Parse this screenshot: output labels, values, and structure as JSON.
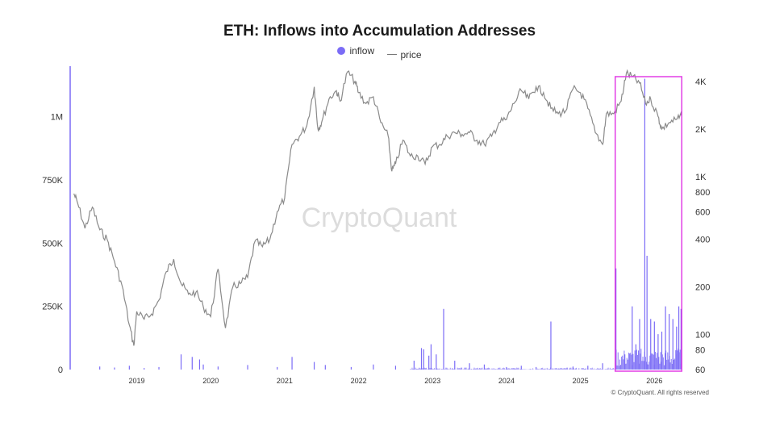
{
  "chart_data": {
    "type": "line",
    "title": "ETH: Inflows into Accumulation Addresses",
    "legend": {
      "placement": "top-center",
      "entries": [
        "inflow",
        "price"
      ]
    },
    "watermark": "CryptoQuant",
    "footer": "© CryptoQuant. All rights reserved",
    "colors": {
      "inflow": "#7b6cf6",
      "price": "#8a8a8a",
      "highlight": "#e23ee6"
    },
    "x_ticks": [
      "2019",
      "2020",
      "2021",
      "2022",
      "2023",
      "2024",
      "2025",
      "2026"
    ],
    "y_left": {
      "ticks": [
        "0",
        "250K",
        "500K",
        "750K",
        "1M"
      ],
      "values": [
        0,
        250000,
        500000,
        750000,
        1000000
      ],
      "range": [
        0,
        1200000
      ]
    },
    "y_right": {
      "scale": "log",
      "ticks": [
        "60",
        "80",
        "100",
        "200",
        "400",
        "600",
        "800",
        "1K",
        "2K",
        "4K"
      ],
      "values": [
        60,
        80,
        100,
        200,
        400,
        600,
        800,
        1000,
        2000,
        4000
      ],
      "range": [
        60,
        5000
      ]
    },
    "highlight_box": {
      "x_start": 2025.47,
      "x_end": 2026.37
    },
    "series": [
      {
        "name": "price",
        "axis": "right",
        "points": [
          [
            2018.15,
            780
          ],
          [
            2018.2,
            680
          ],
          [
            2018.3,
            470
          ],
          [
            2018.4,
            640
          ],
          [
            2018.5,
            460
          ],
          [
            2018.6,
            400
          ],
          [
            2018.7,
            290
          ],
          [
            2018.8,
            205
          ],
          [
            2018.9,
            115
          ],
          [
            2018.96,
            85
          ],
          [
            2019.0,
            140
          ],
          [
            2019.1,
            125
          ],
          [
            2019.2,
            135
          ],
          [
            2019.3,
            165
          ],
          [
            2019.4,
            250
          ],
          [
            2019.5,
            300
          ],
          [
            2019.6,
            210
          ],
          [
            2019.7,
            180
          ],
          [
            2019.8,
            185
          ],
          [
            2019.9,
            150
          ],
          [
            2020.0,
            130
          ],
          [
            2020.1,
            260
          ],
          [
            2020.2,
            110
          ],
          [
            2020.3,
            200
          ],
          [
            2020.4,
            210
          ],
          [
            2020.5,
            230
          ],
          [
            2020.6,
            390
          ],
          [
            2020.7,
            360
          ],
          [
            2020.8,
            400
          ],
          [
            2020.9,
            600
          ],
          [
            2021.0,
            730
          ],
          [
            2021.1,
            1600
          ],
          [
            2021.2,
            1800
          ],
          [
            2021.3,
            2100
          ],
          [
            2021.4,
            3700
          ],
          [
            2021.45,
            2000
          ],
          [
            2021.5,
            2200
          ],
          [
            2021.6,
            3100
          ],
          [
            2021.7,
            3500
          ],
          [
            2021.75,
            3000
          ],
          [
            2021.85,
            4600
          ],
          [
            2021.95,
            4000
          ],
          [
            2022.0,
            3400
          ],
          [
            2022.1,
            2900
          ],
          [
            2022.2,
            3200
          ],
          [
            2022.3,
            2200
          ],
          [
            2022.4,
            1800
          ],
          [
            2022.45,
            1080
          ],
          [
            2022.5,
            1200
          ],
          [
            2022.6,
            1700
          ],
          [
            2022.7,
            1350
          ],
          [
            2022.8,
            1350
          ],
          [
            2022.9,
            1200
          ],
          [
            2023.0,
            1550
          ],
          [
            2023.1,
            1600
          ],
          [
            2023.2,
            1800
          ],
          [
            2023.3,
            1900
          ],
          [
            2023.4,
            1850
          ],
          [
            2023.5,
            1900
          ],
          [
            2023.6,
            1700
          ],
          [
            2023.7,
            1600
          ],
          [
            2023.8,
            1800
          ],
          [
            2023.9,
            2200
          ],
          [
            2024.0,
            2300
          ],
          [
            2024.1,
            2900
          ],
          [
            2024.2,
            3500
          ],
          [
            2024.3,
            3100
          ],
          [
            2024.4,
            3700
          ],
          [
            2024.5,
            3400
          ],
          [
            2024.6,
            2700
          ],
          [
            2024.7,
            2500
          ],
          [
            2024.8,
            2600
          ],
          [
            2024.9,
            3600
          ],
          [
            2025.0,
            3400
          ],
          [
            2025.1,
            2700
          ],
          [
            2025.2,
            1900
          ],
          [
            2025.3,
            1600
          ],
          [
            2025.35,
            2500
          ],
          [
            2025.45,
            2500
          ],
          [
            2025.55,
            3000
          ],
          [
            2025.62,
            4500
          ],
          [
            2025.7,
            4300
          ],
          [
            2025.8,
            3900
          ],
          [
            2025.88,
            2900
          ],
          [
            2025.95,
            3100
          ],
          [
            2026.05,
            2400
          ],
          [
            2026.1,
            2000
          ],
          [
            2026.2,
            2200
          ],
          [
            2026.3,
            2300
          ],
          [
            2026.37,
            2400
          ]
        ]
      },
      {
        "name": "inflow",
        "axis": "left",
        "bars": [
          [
            2018.5,
            12000
          ],
          [
            2018.7,
            8000
          ],
          [
            2018.9,
            15000
          ],
          [
            2019.1,
            6000
          ],
          [
            2019.3,
            10000
          ],
          [
            2019.6,
            60000
          ],
          [
            2019.75,
            50000
          ],
          [
            2019.85,
            40000
          ],
          [
            2019.9,
            20000
          ],
          [
            2020.1,
            12000
          ],
          [
            2020.5,
            18000
          ],
          [
            2020.9,
            10000
          ],
          [
            2021.1,
            50000
          ],
          [
            2021.4,
            30000
          ],
          [
            2021.55,
            18000
          ],
          [
            2021.9,
            10000
          ],
          [
            2022.2,
            20000
          ],
          [
            2022.5,
            15000
          ],
          [
            2022.75,
            35000
          ],
          [
            2022.85,
            85000
          ],
          [
            2022.88,
            80000
          ],
          [
            2022.95,
            55000
          ],
          [
            2022.98,
            100000
          ],
          [
            2023.05,
            60000
          ],
          [
            2023.15,
            240000
          ],
          [
            2023.3,
            35000
          ],
          [
            2023.5,
            25000
          ],
          [
            2023.7,
            20000
          ],
          [
            2024.0,
            10000
          ],
          [
            2024.2,
            15000
          ],
          [
            2024.4,
            10000
          ],
          [
            2024.6,
            190000
          ],
          [
            2024.9,
            12000
          ],
          [
            2025.1,
            15000
          ],
          [
            2025.3,
            25000
          ],
          [
            2025.48,
            400000
          ],
          [
            2025.6,
            60000
          ],
          [
            2025.7,
            250000
          ],
          [
            2025.75,
            100000
          ],
          [
            2025.8,
            200000
          ],
          [
            2025.87,
            1150000
          ],
          [
            2025.9,
            450000
          ],
          [
            2025.95,
            200000
          ],
          [
            2026.0,
            190000
          ],
          [
            2026.05,
            140000
          ],
          [
            2026.1,
            150000
          ],
          [
            2026.15,
            250000
          ],
          [
            2026.2,
            220000
          ],
          [
            2026.25,
            200000
          ],
          [
            2026.3,
            170000
          ],
          [
            2026.33,
            250000
          ],
          [
            2026.36,
            240000
          ]
        ]
      }
    ]
  }
}
